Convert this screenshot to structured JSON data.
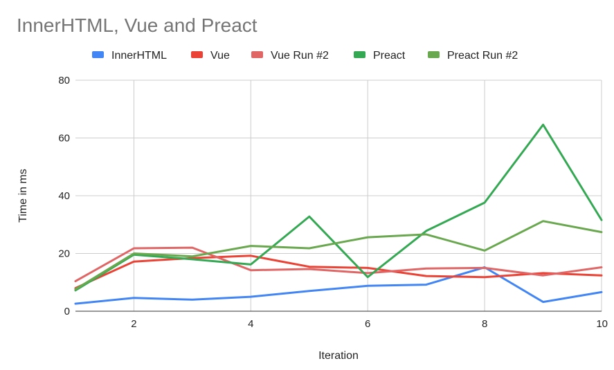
{
  "chart_data": {
    "type": "line",
    "title": "InnerHTML, Vue and Preact",
    "xlabel": "Iteration",
    "ylabel": "Time in ms",
    "x": [
      1,
      2,
      3,
      4,
      5,
      6,
      7,
      8,
      9,
      10
    ],
    "xlim": [
      1,
      10
    ],
    "ylim": [
      0,
      80
    ],
    "x_ticks": [
      2,
      4,
      6,
      8,
      10
    ],
    "y_ticks": [
      0,
      20,
      40,
      60,
      80
    ],
    "grid": true,
    "legend_position": "top",
    "series": [
      {
        "name": "InnerHTML",
        "color": "#4285f4",
        "values": [
          2.6,
          4.6,
          4.0,
          5.0,
          7.0,
          8.8,
          9.2,
          15.2,
          3.2,
          6.6
        ]
      },
      {
        "name": "Vue",
        "color": "#ea4335",
        "values": [
          8.0,
          17.2,
          18.4,
          19.2,
          15.4,
          15.0,
          12.2,
          11.8,
          13.2,
          12.4
        ]
      },
      {
        "name": "Vue Run #2",
        "color": "#e06666",
        "values": [
          10.4,
          21.8,
          22.0,
          14.2,
          14.6,
          13.2,
          14.8,
          15.0,
          12.4,
          15.2
        ]
      },
      {
        "name": "Preact",
        "color": "#34a853",
        "values": [
          7.2,
          19.6,
          18.0,
          16.2,
          32.8,
          11.8,
          27.8,
          37.6,
          64.6,
          31.6
        ]
      },
      {
        "name": "Preact Run #2",
        "color": "#6aa84f",
        "values": [
          7.6,
          20.0,
          19.0,
          22.6,
          21.8,
          25.6,
          26.6,
          21.0,
          31.2,
          27.4
        ]
      }
    ]
  }
}
